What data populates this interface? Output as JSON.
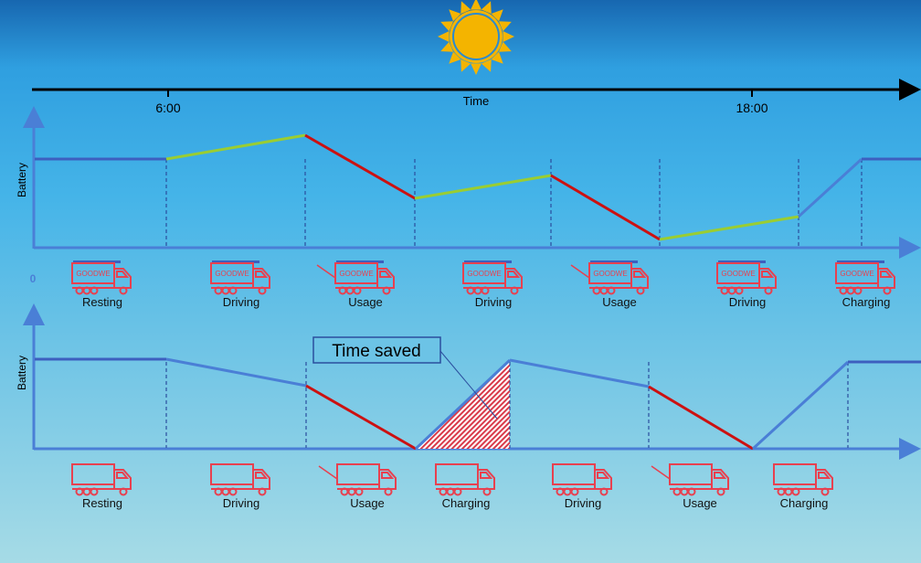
{
  "timeline": {
    "title": "Time",
    "ticks": [
      "6:00",
      "18:00"
    ]
  },
  "top_chart": {
    "ylabel": "Battery",
    "zero_label": "0",
    "truck_brand": "GOODWE",
    "phases": [
      "Resting",
      "Driving",
      "Usage",
      "Driving",
      "Usage",
      "Driving",
      "Charging"
    ]
  },
  "bottom_chart": {
    "ylabel": "Battery",
    "annotation": "Time saved",
    "phases": [
      "Resting",
      "Driving",
      "Usage",
      "Charging",
      "Driving",
      "Usage",
      "Charging"
    ]
  },
  "colors": {
    "sun": "#f4b400",
    "axis": "#4a7fd6",
    "charging": "#9acd32",
    "discharging": "#cc1111",
    "truck": "#e8404f",
    "flat": "#3d5fbf"
  }
}
